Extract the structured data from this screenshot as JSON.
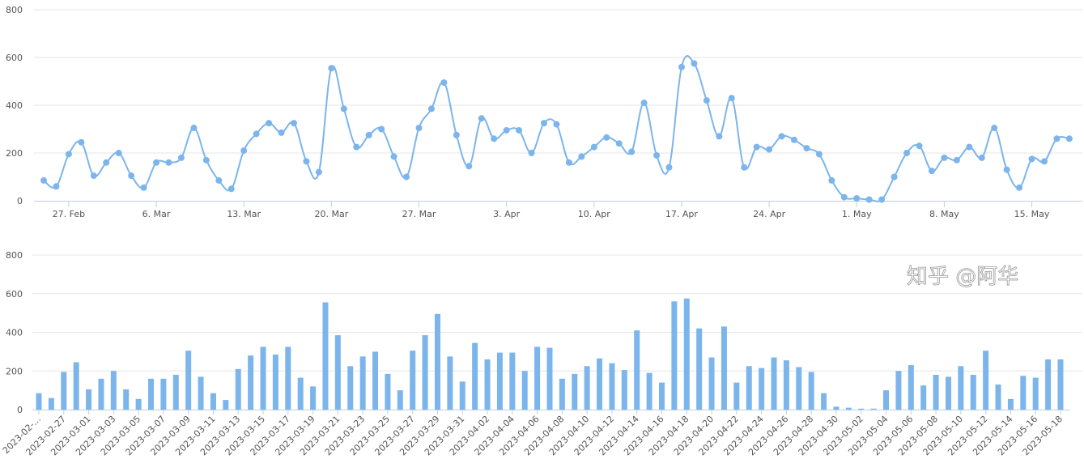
{
  "colors": {
    "series": "#7cb5ec",
    "grid": "#e6e6e6",
    "axis": "#c0d0e0",
    "text": "#555555"
  },
  "watermark": "知乎 @阿华",
  "chart_data": [
    {
      "type": "line",
      "title": "",
      "xlabel": "",
      "ylabel": "",
      "ylim": [
        0,
        800
      ],
      "yticks": [
        "0",
        "200",
        "400",
        "600",
        "800"
      ],
      "grid": true,
      "smooth": true,
      "x_start": "2023-02-25",
      "x_end": "2023-05-18",
      "xtick_labels": [
        "27. Feb",
        "6. Mar",
        "13. Mar",
        "20. Mar",
        "27. Mar",
        "3. Apr",
        "10. Apr",
        "17. Apr",
        "24. Apr",
        "1. May",
        "8. May",
        "15. May"
      ],
      "xtick_first_index": 2,
      "xtick_step_days": 7,
      "values": [
        85,
        60,
        195,
        245,
        105,
        160,
        200,
        105,
        55,
        160,
        160,
        180,
        305,
        170,
        85,
        50,
        210,
        280,
        325,
        285,
        325,
        165,
        120,
        555,
        385,
        225,
        275,
        300,
        185,
        100,
        305,
        385,
        495,
        275,
        145,
        345,
        260,
        295,
        295,
        200,
        325,
        320,
        160,
        185,
        225,
        265,
        240,
        205,
        410,
        190,
        140,
        560,
        575,
        420,
        270,
        430,
        140,
        225,
        215,
        270,
        255,
        220,
        195,
        85,
        15,
        10,
        5,
        5,
        100,
        200,
        230,
        125,
        180,
        170,
        225,
        180,
        305,
        130,
        55,
        175,
        165,
        260,
        260
      ]
    },
    {
      "type": "bar",
      "title": "",
      "xlabel": "",
      "ylabel": "",
      "ylim": [
        0,
        800
      ],
      "yticks": [
        "0",
        "200",
        "400",
        "600",
        "800"
      ],
      "grid": true,
      "xtick_labels": [
        "2023-02-…",
        "2023-02-27",
        "2023-03-01",
        "2023-03-03",
        "2023-03-05",
        "2023-03-07",
        "2023-03-09",
        "2023-03-11",
        "2023-03-13",
        "2023-03-15",
        "2023-03-17",
        "2023-03-19",
        "2023-03-21",
        "2023-03-23",
        "2023-03-25",
        "2023-03-27",
        "2023-03-29",
        "2023-03-31",
        "2023-04-02",
        "2023-04-04",
        "2023-04-06",
        "2023-04-08",
        "2023-04-10",
        "2023-04-12",
        "2023-04-14",
        "2023-04-16",
        "2023-04-18",
        "2023-04-20",
        "2023-04-22",
        "2023-04-24",
        "2023-04-26",
        "2023-04-28",
        "2023-04-30",
        "2023-05-02",
        "2023-05-04",
        "2023-05-06",
        "2023-05-08",
        "2023-05-10",
        "2023-05-12",
        "2023-05-14",
        "2023-05-16",
        "2023-05-18"
      ],
      "values": [
        85,
        60,
        195,
        245,
        105,
        160,
        200,
        105,
        55,
        160,
        160,
        180,
        305,
        170,
        85,
        50,
        210,
        280,
        325,
        285,
        325,
        165,
        120,
        555,
        385,
        225,
        275,
        300,
        185,
        100,
        305,
        385,
        495,
        275,
        145,
        345,
        260,
        295,
        295,
        200,
        325,
        320,
        160,
        185,
        225,
        265,
        240,
        205,
        410,
        190,
        140,
        560,
        575,
        420,
        270,
        430,
        140,
        225,
        215,
        270,
        255,
        220,
        195,
        85,
        15,
        10,
        5,
        5,
        100,
        200,
        230,
        125,
        180,
        170,
        225,
        180,
        305,
        130,
        55,
        175,
        165,
        260,
        260
      ]
    }
  ]
}
